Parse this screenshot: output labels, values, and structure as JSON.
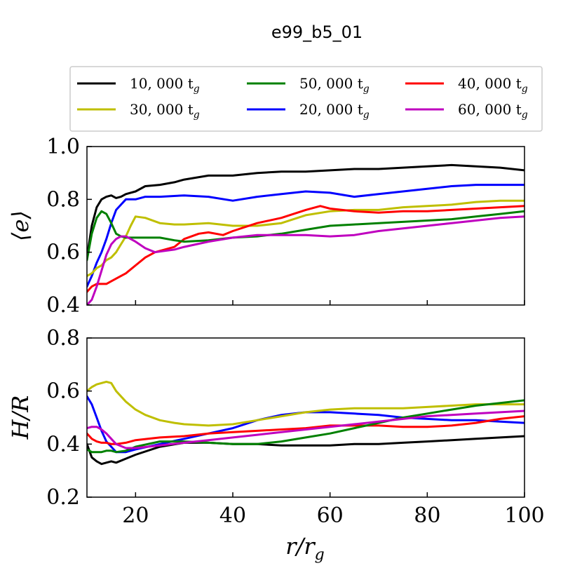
{
  "title": "e99_b5_01",
  "legend": {
    "entries": [
      {
        "label": "10, 000 t",
        "sub": "g",
        "color": "#000000"
      },
      {
        "label": "30, 000 t",
        "sub": "g",
        "color": "#bfbf00"
      },
      {
        "label": "50, 000 t",
        "sub": "g",
        "color": "#008000"
      },
      {
        "label": "20, 000 t",
        "sub": "g",
        "color": "#0000ff"
      },
      {
        "label": "40, 000 t",
        "sub": "g",
        "color": "#ff0000"
      },
      {
        "label": "60, 000 t",
        "sub": "g",
        "color": "#bf00bf"
      }
    ]
  },
  "chart_data": [
    {
      "type": "line",
      "title": "",
      "xlabel": "r/r_g",
      "ylabel": "⟨e⟩",
      "xlim": [
        10,
        100
      ],
      "ylim": [
        0.4,
        1.0
      ],
      "yticks": [
        "0.4",
        "0.6",
        "0.8",
        "1.0"
      ],
      "xticks": [
        20,
        40,
        60,
        80,
        100
      ],
      "series": [
        {
          "name": "10, 000 t_g",
          "color": "#000000",
          "x": [
            10,
            11,
            12,
            13,
            14,
            15,
            16,
            17,
            18,
            20,
            22,
            25,
            28,
            30,
            35,
            40,
            45,
            50,
            55,
            60,
            65,
            70,
            75,
            80,
            85,
            90,
            95,
            100
          ],
          "y": [
            0.58,
            0.7,
            0.77,
            0.8,
            0.81,
            0.815,
            0.805,
            0.81,
            0.82,
            0.83,
            0.85,
            0.855,
            0.865,
            0.875,
            0.89,
            0.89,
            0.9,
            0.905,
            0.905,
            0.91,
            0.915,
            0.915,
            0.92,
            0.925,
            0.93,
            0.925,
            0.92,
            0.91
          ]
        },
        {
          "name": "20, 000 t_g",
          "color": "#0000ff",
          "x": [
            10,
            11,
            12,
            13,
            14,
            15,
            16,
            17,
            18,
            20,
            22,
            25,
            30,
            35,
            40,
            45,
            50,
            55,
            60,
            65,
            70,
            75,
            80,
            85,
            90,
            95,
            100
          ],
          "y": [
            0.47,
            0.51,
            0.56,
            0.6,
            0.65,
            0.71,
            0.76,
            0.78,
            0.8,
            0.8,
            0.81,
            0.81,
            0.815,
            0.81,
            0.795,
            0.81,
            0.82,
            0.83,
            0.825,
            0.81,
            0.82,
            0.83,
            0.84,
            0.85,
            0.855,
            0.855,
            0.855
          ]
        },
        {
          "name": "30, 000 t_g",
          "color": "#bfbf00",
          "x": [
            10,
            11,
            12,
            13,
            14,
            15,
            16,
            17,
            18,
            19,
            20,
            22,
            25,
            28,
            30,
            35,
            40,
            45,
            50,
            55,
            60,
            65,
            70,
            75,
            80,
            85,
            90,
            95,
            100
          ],
          "y": [
            0.51,
            0.52,
            0.54,
            0.55,
            0.57,
            0.58,
            0.6,
            0.63,
            0.66,
            0.7,
            0.735,
            0.73,
            0.71,
            0.705,
            0.705,
            0.71,
            0.7,
            0.7,
            0.71,
            0.74,
            0.755,
            0.76,
            0.76,
            0.77,
            0.775,
            0.78,
            0.79,
            0.795,
            0.795
          ]
        },
        {
          "name": "40, 000 t_g",
          "color": "#ff0000",
          "x": [
            10,
            11,
            12,
            13,
            14,
            15,
            16,
            17,
            18,
            20,
            22,
            24,
            26,
            28,
            30,
            33,
            35,
            38,
            40,
            45,
            50,
            55,
            58,
            60,
            65,
            70,
            75,
            80,
            85,
            90,
            95,
            100
          ],
          "y": [
            0.45,
            0.47,
            0.48,
            0.48,
            0.48,
            0.49,
            0.5,
            0.51,
            0.52,
            0.55,
            0.58,
            0.6,
            0.61,
            0.62,
            0.65,
            0.67,
            0.675,
            0.665,
            0.68,
            0.71,
            0.73,
            0.76,
            0.775,
            0.765,
            0.755,
            0.75,
            0.755,
            0.755,
            0.76,
            0.765,
            0.77,
            0.775
          ]
        },
        {
          "name": "50, 000 t_g",
          "color": "#008000",
          "x": [
            10,
            11,
            12,
            13,
            14,
            15,
            16,
            17,
            18,
            20,
            22,
            25,
            28,
            30,
            35,
            40,
            45,
            50,
            55,
            60,
            65,
            70,
            75,
            80,
            85,
            90,
            95,
            100
          ],
          "y": [
            0.57,
            0.67,
            0.73,
            0.755,
            0.745,
            0.71,
            0.67,
            0.66,
            0.655,
            0.655,
            0.655,
            0.655,
            0.645,
            0.64,
            0.645,
            0.655,
            0.66,
            0.67,
            0.685,
            0.7,
            0.705,
            0.71,
            0.715,
            0.72,
            0.725,
            0.735,
            0.745,
            0.755
          ]
        },
        {
          "name": "60, 000 t_g",
          "color": "#bf00bf",
          "x": [
            10,
            11,
            12,
            13,
            14,
            15,
            16,
            17,
            18,
            20,
            22,
            24,
            26,
            28,
            30,
            35,
            40,
            45,
            50,
            55,
            60,
            65,
            70,
            75,
            80,
            85,
            90,
            95,
            100
          ],
          "y": [
            0.4,
            0.42,
            0.47,
            0.53,
            0.59,
            0.63,
            0.65,
            0.66,
            0.66,
            0.64,
            0.615,
            0.6,
            0.605,
            0.61,
            0.62,
            0.64,
            0.655,
            0.665,
            0.665,
            0.665,
            0.66,
            0.665,
            0.68,
            0.69,
            0.7,
            0.71,
            0.72,
            0.73,
            0.735
          ]
        }
      ]
    },
    {
      "type": "line",
      "title": "",
      "xlabel": "r/r_g",
      "ylabel": "H/R",
      "xlim": [
        10,
        100
      ],
      "ylim": [
        0.2,
        0.8
      ],
      "yticks": [
        "0.2",
        "0.4",
        "0.6",
        "0.8"
      ],
      "xticks": [
        20,
        40,
        60,
        80,
        100
      ],
      "series": [
        {
          "name": "10, 000 t_g",
          "color": "#000000",
          "x": [
            10,
            11,
            12,
            13,
            14,
            15,
            16,
            18,
            20,
            25,
            30,
            35,
            40,
            45,
            50,
            55,
            60,
            65,
            70,
            75,
            80,
            85,
            90,
            95,
            100
          ],
          "y": [
            0.4,
            0.35,
            0.335,
            0.325,
            0.33,
            0.335,
            0.33,
            0.345,
            0.36,
            0.39,
            0.405,
            0.405,
            0.4,
            0.4,
            0.395,
            0.395,
            0.395,
            0.4,
            0.4,
            0.405,
            0.41,
            0.415,
            0.42,
            0.425,
            0.43
          ]
        },
        {
          "name": "20, 000 t_g",
          "color": "#0000ff",
          "x": [
            10,
            11,
            12,
            13,
            14,
            15,
            16,
            18,
            20,
            25,
            30,
            35,
            40,
            45,
            50,
            55,
            60,
            65,
            70,
            75,
            80,
            85,
            90,
            95,
            100
          ],
          "y": [
            0.58,
            0.55,
            0.5,
            0.45,
            0.41,
            0.39,
            0.37,
            0.37,
            0.38,
            0.4,
            0.42,
            0.44,
            0.46,
            0.49,
            0.51,
            0.52,
            0.52,
            0.515,
            0.51,
            0.5,
            0.495,
            0.49,
            0.49,
            0.485,
            0.48
          ]
        },
        {
          "name": "30, 000 t_g",
          "color": "#bfbf00",
          "x": [
            10,
            11,
            12,
            13,
            14,
            15,
            16,
            17,
            18,
            20,
            22,
            25,
            28,
            30,
            35,
            40,
            45,
            50,
            55,
            60,
            65,
            70,
            75,
            80,
            85,
            90,
            95,
            100
          ],
          "y": [
            0.6,
            0.615,
            0.625,
            0.63,
            0.635,
            0.63,
            0.6,
            0.58,
            0.56,
            0.53,
            0.51,
            0.49,
            0.48,
            0.475,
            0.47,
            0.475,
            0.49,
            0.505,
            0.52,
            0.53,
            0.535,
            0.535,
            0.535,
            0.54,
            0.545,
            0.55,
            0.55,
            0.55
          ]
        },
        {
          "name": "40, 000 t_g",
          "color": "#ff0000",
          "x": [
            10,
            11,
            12,
            13,
            14,
            15,
            16,
            18,
            20,
            25,
            30,
            35,
            40,
            45,
            50,
            55,
            60,
            65,
            70,
            75,
            80,
            85,
            90,
            95,
            100
          ],
          "y": [
            0.44,
            0.42,
            0.41,
            0.405,
            0.405,
            0.4,
            0.4,
            0.405,
            0.415,
            0.425,
            0.43,
            0.44,
            0.445,
            0.45,
            0.455,
            0.46,
            0.47,
            0.47,
            0.47,
            0.465,
            0.465,
            0.47,
            0.48,
            0.495,
            0.505
          ]
        },
        {
          "name": "50, 000 t_g",
          "color": "#008000",
          "x": [
            10,
            11,
            12,
            13,
            14,
            15,
            16,
            18,
            20,
            25,
            30,
            35,
            40,
            45,
            50,
            55,
            60,
            65,
            70,
            75,
            80,
            85,
            90,
            95,
            100
          ],
          "y": [
            0.38,
            0.37,
            0.37,
            0.37,
            0.375,
            0.375,
            0.37,
            0.375,
            0.39,
            0.41,
            0.41,
            0.405,
            0.4,
            0.4,
            0.41,
            0.425,
            0.44,
            0.46,
            0.48,
            0.5,
            0.515,
            0.53,
            0.545,
            0.555,
            0.565
          ]
        },
        {
          "name": "60, 000 t_g",
          "color": "#bf00bf",
          "x": [
            10,
            11,
            12,
            13,
            14,
            15,
            16,
            18,
            20,
            25,
            30,
            35,
            40,
            45,
            50,
            55,
            60,
            65,
            70,
            75,
            80,
            85,
            90,
            95,
            100
          ],
          "y": [
            0.46,
            0.465,
            0.465,
            0.455,
            0.44,
            0.42,
            0.4,
            0.385,
            0.385,
            0.395,
            0.405,
            0.415,
            0.425,
            0.435,
            0.445,
            0.455,
            0.465,
            0.475,
            0.485,
            0.495,
            0.505,
            0.51,
            0.515,
            0.52,
            0.525
          ]
        }
      ]
    }
  ]
}
